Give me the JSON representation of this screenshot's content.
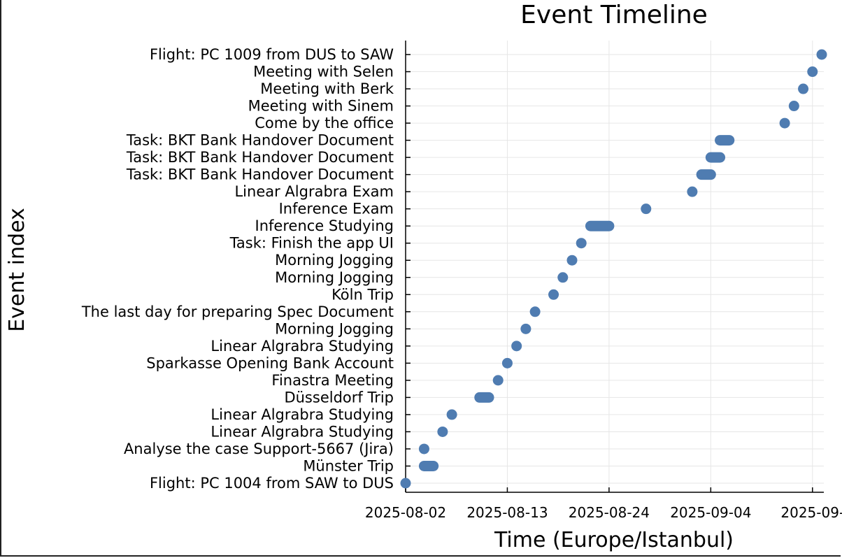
{
  "chart_data": {
    "type": "scatter",
    "title": "Event Timeline",
    "xlabel": "Time (Europe/Istanbul)",
    "ylabel": "Event index",
    "x_ticks": [
      "2025-08-02",
      "2025-08-13",
      "2025-08-24",
      "2025-09-04",
      "2025-09-"
    ],
    "xlim": [
      "2025-08-02",
      "2025-09-16"
    ],
    "grid": true,
    "legend": "none",
    "marker_color": "#4f7cb1",
    "events": [
      {
        "label": "Flight: PC 1004 from SAW to DUS",
        "start": "2025-08-02",
        "end": "2025-08-02"
      },
      {
        "label": "Münster Trip",
        "start": "2025-08-04",
        "end": "2025-08-05"
      },
      {
        "label": "Analyse the case Support-5667 (Jira)",
        "start": "2025-08-04",
        "end": "2025-08-04"
      },
      {
        "label": "Linear Algrabra Studying",
        "start": "2025-08-06",
        "end": "2025-08-06"
      },
      {
        "label": "Linear Algrabra Studying",
        "start": "2025-08-07",
        "end": "2025-08-07"
      },
      {
        "label": "Düsseldorf Trip",
        "start": "2025-08-10",
        "end": "2025-08-11"
      },
      {
        "label": "Finastra Meeting",
        "start": "2025-08-12",
        "end": "2025-08-12"
      },
      {
        "label": "Sparkasse Opening Bank Account ",
        "start": "2025-08-13",
        "end": "2025-08-13"
      },
      {
        "label": "Linear Algrabra Studying",
        "start": "2025-08-14",
        "end": "2025-08-14"
      },
      {
        "label": "Morning Jogging",
        "start": "2025-08-15",
        "end": "2025-08-15"
      },
      {
        "label": "The last day for preparing Spec Document",
        "start": "2025-08-16",
        "end": "2025-08-16"
      },
      {
        "label": "Köln Trip",
        "start": "2025-08-18",
        "end": "2025-08-18"
      },
      {
        "label": "Morning Jogging",
        "start": "2025-08-19",
        "end": "2025-08-19"
      },
      {
        "label": "Morning Jogging",
        "start": "2025-08-20",
        "end": "2025-08-20"
      },
      {
        "label": "Task: Finish the app UI ",
        "start": "2025-08-21",
        "end": "2025-08-21"
      },
      {
        "label": "Inference Studying",
        "start": "2025-08-22",
        "end": "2025-08-24"
      },
      {
        "label": "Inference Exam",
        "start": "2025-08-28",
        "end": "2025-08-28"
      },
      {
        "label": "Linear Algrabra Exam",
        "start": "2025-09-02",
        "end": "2025-09-02"
      },
      {
        "label": "Task: BKT Bank Handover Document",
        "start": "2025-09-03",
        "end": "2025-09-04"
      },
      {
        "label": "Task: BKT Bank Handover Document",
        "start": "2025-09-04",
        "end": "2025-09-05"
      },
      {
        "label": "Task: BKT Bank Handover Document",
        "start": "2025-09-05",
        "end": "2025-09-06"
      },
      {
        "label": "Come by the office",
        "start": "2025-09-12",
        "end": "2025-09-12"
      },
      {
        "label": "Meeting with Sinem",
        "start": "2025-09-13",
        "end": "2025-09-13"
      },
      {
        "label": "Meeting with Berk",
        "start": "2025-09-14",
        "end": "2025-09-14"
      },
      {
        "label": "Meeting with Selen",
        "start": "2025-09-15",
        "end": "2025-09-15"
      },
      {
        "label": "Flight: PC 1009 from DUS to SAW",
        "start": "2025-09-16",
        "end": "2025-09-16"
      }
    ]
  }
}
